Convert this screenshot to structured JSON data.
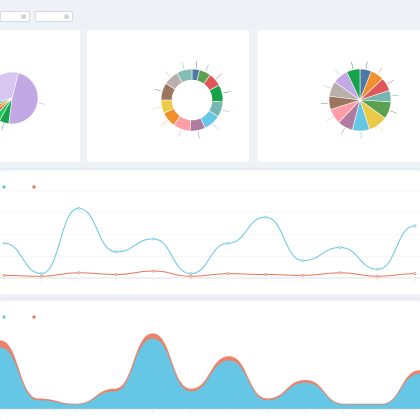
{
  "tabs": [
    {
      "label": "",
      "icon": "calendar-icon"
    },
    {
      "label": "",
      "icon": "calendar-icon"
    }
  ],
  "colors": {
    "accent_blue": "#66c6e6",
    "accent_red": "#e8755a",
    "purple": "#c3a8e6",
    "green": "#16a34a",
    "grid": "#eeeeee",
    "axis": "#cccccc"
  },
  "chart_data": [
    {
      "type": "pie",
      "title": "",
      "slices": [
        {
          "label": "",
          "value": 48,
          "color": "#c3a8e6"
        },
        {
          "label": "",
          "value": 6,
          "color": "#16a34a"
        },
        {
          "label": "",
          "value": 4,
          "color": "#22c55e"
        },
        {
          "label": "",
          "value": 3,
          "color": "#e8755a"
        },
        {
          "label": "",
          "value": 3,
          "color": "#f59e0b"
        },
        {
          "label": "",
          "value": 3,
          "color": "#66c6e6"
        },
        {
          "label": "",
          "value": 33,
          "color": "#d9c6f0"
        }
      ]
    },
    {
      "type": "pie",
      "donut": true,
      "title": "",
      "legend": [],
      "slices": [
        {
          "label": "",
          "value": 4,
          "color": "#4e79a7"
        },
        {
          "label": "",
          "value": 6,
          "color": "#59a14f"
        },
        {
          "label": "",
          "value": 7,
          "color": "#e15759"
        },
        {
          "label": "",
          "value": 9,
          "color": "#16a34a"
        },
        {
          "label": "",
          "value": 8,
          "color": "#76b7b2"
        },
        {
          "label": "",
          "value": 9,
          "color": "#66c6e6"
        },
        {
          "label": "",
          "value": 8,
          "color": "#b07aa1"
        },
        {
          "label": "",
          "value": 9,
          "color": "#ff9da7"
        },
        {
          "label": "",
          "value": 8,
          "color": "#f28e2b"
        },
        {
          "label": "",
          "value": 7,
          "color": "#edc948"
        },
        {
          "label": "",
          "value": 9,
          "color": "#9c755f"
        },
        {
          "label": "",
          "value": 8,
          "color": "#bab0ab"
        },
        {
          "label": "",
          "value": 8,
          "color": "#86bcb6"
        }
      ]
    },
    {
      "type": "pie",
      "title": "",
      "legend": [],
      "slices": [
        {
          "label": "",
          "value": 6,
          "color": "#4e79a7"
        },
        {
          "label": "",
          "value": 7,
          "color": "#f28e2b"
        },
        {
          "label": "",
          "value": 7,
          "color": "#e15759"
        },
        {
          "label": "",
          "value": 6,
          "color": "#76b7b2"
        },
        {
          "label": "",
          "value": 9,
          "color": "#59a14f"
        },
        {
          "label": "",
          "value": 10,
          "color": "#edc948"
        },
        {
          "label": "",
          "value": 9,
          "color": "#66c6e6"
        },
        {
          "label": "",
          "value": 8,
          "color": "#b07aa1"
        },
        {
          "label": "",
          "value": 8,
          "color": "#ff9da7"
        },
        {
          "label": "",
          "value": 7,
          "color": "#9c755f"
        },
        {
          "label": "",
          "value": 8,
          "color": "#bab0ab"
        },
        {
          "label": "",
          "value": 8,
          "color": "#c3a8e6"
        },
        {
          "label": "",
          "value": 7,
          "color": "#16a34a"
        }
      ]
    },
    {
      "type": "line",
      "title": "",
      "legend": [],
      "legend_position": "top-left",
      "categories": [
        "",
        "",
        "",
        "",
        "",
        "",
        "",
        "",
        "",
        "",
        "",
        ""
      ],
      "ylim": [
        0,
        100
      ],
      "series": [
        {
          "name": "",
          "color": "#66c6e6",
          "values": [
            40,
            5,
            80,
            30,
            45,
            5,
            40,
            70,
            20,
            35,
            10,
            60
          ]
        },
        {
          "name": "",
          "color": "#e8755a",
          "values": [
            3,
            2,
            6,
            4,
            8,
            2,
            5,
            4,
            3,
            6,
            2,
            5
          ]
        }
      ]
    },
    {
      "type": "area",
      "title": "",
      "legend": [],
      "legend_position": "top-left",
      "categories": [
        "",
        "",
        "",
        "",
        "",
        "",
        "",
        "",
        "",
        "",
        "",
        ""
      ],
      "ylim": [
        0,
        100
      ],
      "series": [
        {
          "name": "",
          "color": "#66c6e6",
          "values": [
            70,
            10,
            5,
            20,
            80,
            20,
            55,
            10,
            30,
            5,
            5,
            40
          ]
        },
        {
          "name": "",
          "color": "#e8755a",
          "values": [
            8,
            2,
            1,
            3,
            6,
            3,
            5,
            2,
            3,
            1,
            1,
            4
          ]
        }
      ]
    }
  ]
}
